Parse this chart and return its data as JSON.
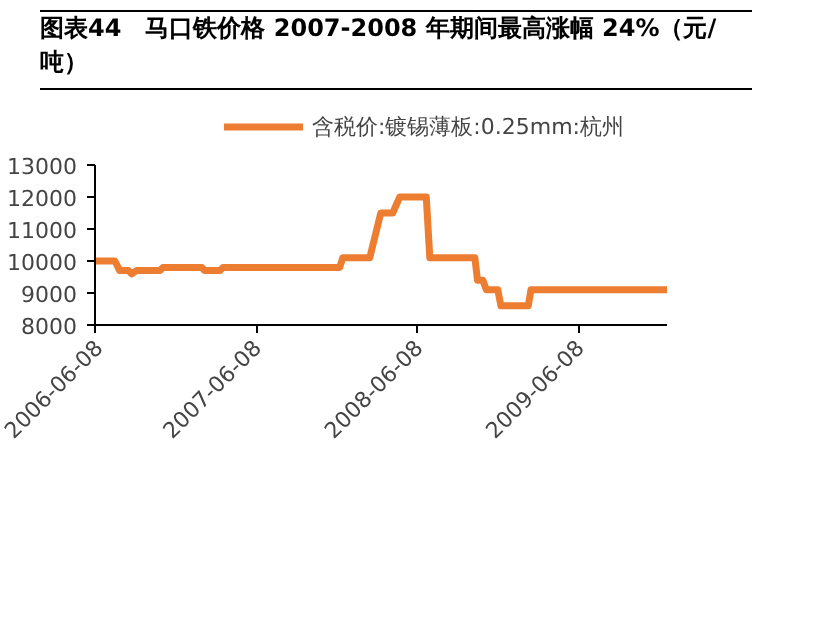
{
  "chart_data": {
    "type": "line",
    "title": "图表44　马口铁价格 2007-2008 年期间最高涨幅 24%（元/吨）",
    "x": [
      "2006-06-08",
      "2006-07-23",
      "2006-08-03",
      "2006-08-23",
      "2006-08-30",
      "2006-09-10",
      "2006-11-02",
      "2006-11-09",
      "2007-02-05",
      "2007-02-11",
      "2007-03-18",
      "2007-03-25",
      "2007-12-14",
      "2007-12-21",
      "2008-02-20",
      "2008-03-16",
      "2008-04-12",
      "2008-04-28",
      "2008-06-27",
      "2008-07-05",
      "2008-10-15",
      "2008-10-21",
      "2008-11-02",
      "2008-11-10",
      "2008-12-06",
      "2008-12-13",
      "2009-02-13",
      "2009-02-19",
      "2009-12-24"
    ],
    "series": [
      {
        "name": "含税价:镀锡薄板:0.25mm:杭州",
        "color": "#ed7d31",
        "values": [
          10000,
          10000,
          9700,
          9700,
          9600,
          9700,
          9700,
          9800,
          9800,
          9700,
          9700,
          9800,
          9800,
          10100,
          10100,
          11500,
          11500,
          12000,
          12000,
          10100,
          10100,
          9400,
          9400,
          9100,
          9100,
          8600,
          8600,
          9100,
          9100
        ]
      }
    ],
    "xlim": [
      "2006-06-08",
      "2009-12-24"
    ],
    "xticks": [
      {
        "value": "2006-06-08",
        "label": "2006-06-08"
      },
      {
        "value": "2007-06-08",
        "label": "2007-06-08"
      },
      {
        "value": "2008-06-08",
        "label": "2008-06-08"
      },
      {
        "value": "2009-06-08",
        "label": "2009-06-08"
      }
    ],
    "ylim": [
      8000,
      13000
    ],
    "yticks": [
      8000,
      9000,
      10000,
      11000,
      12000,
      13000
    ],
    "grid": false,
    "legend": "top",
    "marker": "none",
    "line_style": "solid"
  }
}
